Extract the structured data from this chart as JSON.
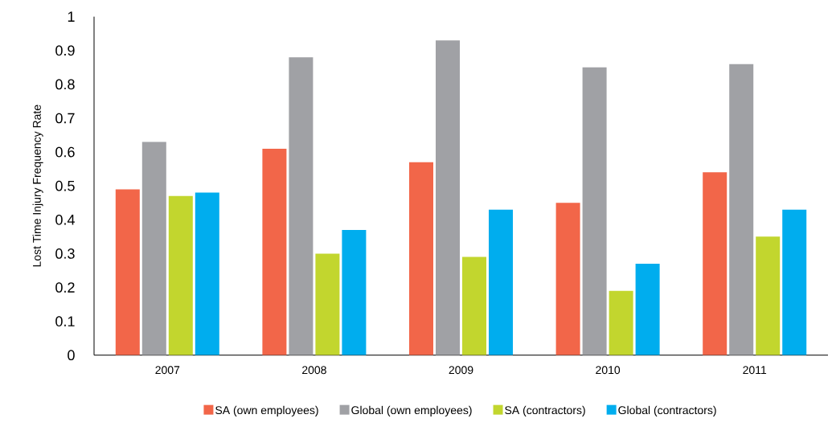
{
  "chart_data": {
    "type": "bar",
    "ylabel": "Lost Time Injury Frequency Rate",
    "categories": [
      "2007",
      "2008",
      "2009",
      "2010",
      "2011"
    ],
    "series": [
      {
        "name": "SA (own employees)",
        "color": "#f26649",
        "values": [
          0.49,
          0.61,
          0.57,
          0.45,
          0.54
        ]
      },
      {
        "name": "Global (own employees)",
        "color": "#a0a1a5",
        "values": [
          0.63,
          0.88,
          0.93,
          0.85,
          0.86
        ]
      },
      {
        "name": "SA (contractors)",
        "color": "#c2d62e",
        "values": [
          0.47,
          0.3,
          0.29,
          0.19,
          0.35
        ]
      },
      {
        "name": "Global (contractors)",
        "color": "#00adee",
        "values": [
          0.48,
          0.37,
          0.43,
          0.27,
          0.43
        ]
      }
    ],
    "ylim": [
      0,
      1
    ],
    "yticks": [
      0,
      0.1,
      0.2,
      0.3,
      0.4,
      0.5,
      0.6,
      0.7,
      0.8,
      0.9,
      1
    ],
    "legend": "bottom"
  }
}
